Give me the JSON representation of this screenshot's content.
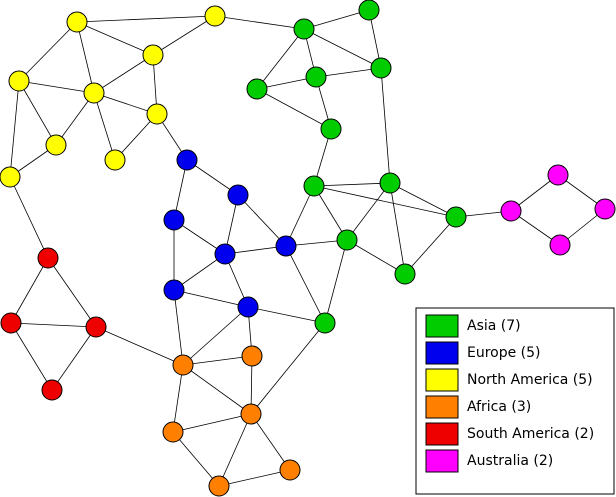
{
  "legend": {
    "entries": [
      {
        "label": "Asia (7)",
        "color": "#00cc00"
      },
      {
        "label": "Europe (5)",
        "color": "#0000ee"
      },
      {
        "label": "North America (5)",
        "color": "#ffff00"
      },
      {
        "label": "Africa (3)",
        "color": "#ff8000"
      },
      {
        "label": "South America (2)",
        "color": "#ee0000"
      },
      {
        "label": "Australia (2)",
        "color": "#ff00ff"
      }
    ]
  }
}
